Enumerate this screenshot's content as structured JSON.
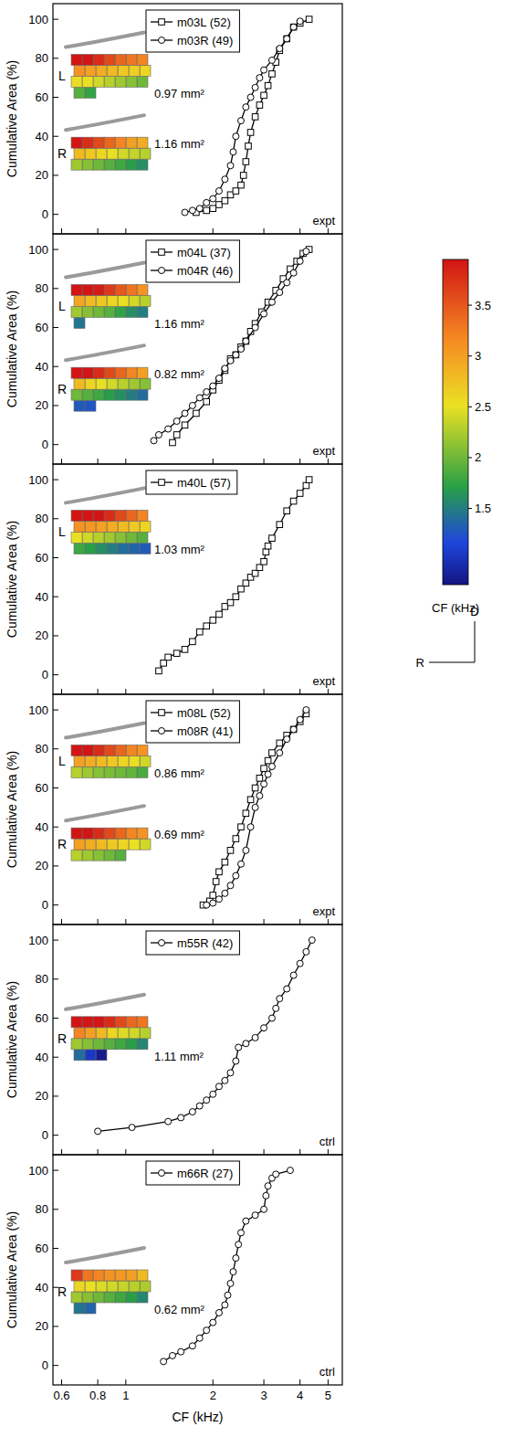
{
  "chart_data": [
    {
      "type": "line",
      "xlim": [
        0.56,
        5.6
      ],
      "xticks": [
        0.6,
        0.8,
        1,
        2,
        3,
        4,
        5
      ],
      "ylim": [
        -10,
        108
      ],
      "yticks": [
        0,
        20,
        40,
        60,
        80,
        100
      ],
      "log": "x",
      "ylabel": "Cumulative Area (%)",
      "annotation": "expt",
      "legend": "top",
      "tick_labels": "y",
      "series": [
        {
          "name": "m03L (52)",
          "marker": "square",
          "color": "#000000",
          "hemisphere": "L",
          "area_label": "0.97 mm²",
          "x": [
            1.75,
            1.9,
            2.0,
            2.1,
            2.2,
            2.3,
            2.4,
            2.5,
            2.55,
            2.6,
            2.65,
            2.7,
            2.8,
            2.9,
            3.0,
            3.1,
            3.2,
            3.3,
            3.4,
            3.6,
            3.8,
            4.0,
            4.3
          ],
          "values": [
            1,
            2,
            3,
            5,
            7,
            10,
            12,
            15,
            20,
            27,
            35,
            42,
            50,
            56,
            61,
            66,
            72,
            78,
            84,
            90,
            96,
            98,
            100
          ]
        },
        {
          "name": "m03R (49)",
          "marker": "circle",
          "color": "#000000",
          "hemisphere": "R",
          "area_label": "1.16 mm²",
          "x": [
            1.6,
            1.7,
            1.8,
            1.9,
            2.0,
            2.1,
            2.2,
            2.3,
            2.35,
            2.4,
            2.5,
            2.6,
            2.7,
            2.8,
            2.9,
            3.0,
            3.2,
            3.4,
            3.6,
            3.8,
            4.0
          ],
          "values": [
            1,
            2,
            3,
            6,
            8,
            12,
            18,
            25,
            32,
            40,
            48,
            55,
            60,
            65,
            70,
            74,
            79,
            85,
            90,
            96,
            99
          ]
        }
      ]
    },
    {
      "type": "line",
      "xlim": [
        0.56,
        5.6
      ],
      "xticks": [
        0.6,
        0.8,
        1,
        2,
        3,
        4,
        5
      ],
      "ylim": [
        -10,
        108
      ],
      "yticks": [
        0,
        20,
        40,
        60,
        80,
        100
      ],
      "log": "x",
      "ylabel": "Cumulative Area (%)",
      "annotation": "expt",
      "legend": "top",
      "tick_labels": "y",
      "series": [
        {
          "name": "m04L (37)",
          "marker": "square",
          "color": "#000000",
          "hemisphere": "L",
          "area_label": "1.16 mm²",
          "x": [
            1.45,
            1.5,
            1.6,
            1.75,
            1.9,
            2.0,
            2.1,
            2.2,
            2.3,
            2.4,
            2.5,
            2.6,
            2.7,
            2.8,
            2.95,
            3.1,
            3.3,
            3.5,
            3.7,
            3.9,
            4.1,
            4.3
          ],
          "values": [
            1,
            5,
            10,
            16,
            22,
            28,
            33,
            38,
            44,
            46,
            50,
            53,
            58,
            62,
            68,
            73,
            79,
            85,
            90,
            94,
            98,
            100
          ]
        },
        {
          "name": "m04R (46)",
          "marker": "circle",
          "color": "#000000",
          "hemisphere": "R",
          "area_label": "0.82 mm²",
          "x": [
            1.25,
            1.3,
            1.4,
            1.5,
            1.6,
            1.7,
            1.8,
            1.9,
            2.0,
            2.1,
            2.2,
            2.3,
            2.4,
            2.5,
            2.6,
            2.8,
            3.0,
            3.2,
            3.4,
            3.6,
            3.8,
            4.0,
            4.2
          ],
          "values": [
            2,
            5,
            8,
            12,
            16,
            20,
            24,
            27,
            30,
            34,
            39,
            43,
            46,
            49,
            53,
            60,
            67,
            73,
            78,
            83,
            88,
            94,
            99
          ]
        }
      ]
    },
    {
      "type": "line",
      "xlim": [
        0.56,
        5.6
      ],
      "xticks": [
        0.6,
        0.8,
        1,
        2,
        3,
        4,
        5
      ],
      "ylim": [
        -10,
        108
      ],
      "yticks": [
        0,
        20,
        40,
        60,
        80,
        100
      ],
      "log": "x",
      "ylabel": "Cumulative Area (%)",
      "annotation": "expt",
      "legend": "top",
      "tick_labels": "y",
      "series": [
        {
          "name": "m40L (57)",
          "marker": "square",
          "color": "#000000",
          "hemisphere": "L",
          "area_label": "1.03 mm²",
          "x": [
            1.3,
            1.35,
            1.4,
            1.5,
            1.6,
            1.7,
            1.8,
            1.9,
            2.0,
            2.1,
            2.2,
            2.3,
            2.4,
            2.5,
            2.6,
            2.7,
            2.8,
            2.9,
            3.0,
            3.05,
            3.1,
            3.2,
            3.4,
            3.6,
            3.8,
            4.0,
            4.2,
            4.3
          ],
          "values": [
            2,
            6,
            9,
            11,
            13,
            17,
            22,
            25,
            28,
            31,
            35,
            37,
            40,
            44,
            47,
            50,
            52,
            55,
            58,
            63,
            66,
            70,
            77,
            84,
            89,
            93,
            97,
            100
          ]
        }
      ]
    },
    {
      "type": "line",
      "xlim": [
        0.56,
        5.6
      ],
      "xticks": [
        0.6,
        0.8,
        1,
        2,
        3,
        4,
        5
      ],
      "ylim": [
        -10,
        108
      ],
      "yticks": [
        0,
        20,
        40,
        60,
        80,
        100
      ],
      "log": "x",
      "ylabel": "Cumulative Area (%)",
      "annotation": "expt",
      "legend": "top",
      "tick_labels": "y",
      "series": [
        {
          "name": "m08L (52)",
          "marker": "square",
          "color": "#000000",
          "hemisphere": "L",
          "area_label": "0.86 mm²",
          "x": [
            1.85,
            1.95,
            2.0,
            2.05,
            2.1,
            2.2,
            2.3,
            2.4,
            2.5,
            2.6,
            2.7,
            2.8,
            2.9,
            3.0,
            3.1,
            3.2,
            3.4,
            3.6,
            3.8,
            4.0,
            4.2
          ],
          "values": [
            0,
            2,
            5,
            12,
            17,
            22,
            28,
            34,
            40,
            47,
            54,
            60,
            65,
            70,
            74,
            78,
            83,
            87,
            90,
            94,
            98
          ]
        },
        {
          "name": "m08R (41)",
          "marker": "circle",
          "color": "#000000",
          "hemisphere": "R",
          "area_label": "0.69 mm²",
          "x": [
            1.9,
            2.0,
            2.1,
            2.2,
            2.3,
            2.4,
            2.5,
            2.6,
            2.7,
            2.8,
            2.9,
            3.0,
            3.1,
            3.2,
            3.4,
            3.6,
            3.8,
            4.0,
            4.2
          ],
          "values": [
            0,
            1,
            3,
            6,
            10,
            15,
            21,
            28,
            40,
            50,
            56,
            62,
            67,
            71,
            78,
            85,
            90,
            95,
            100
          ]
        }
      ]
    },
    {
      "type": "line",
      "xlim": [
        0.56,
        5.6
      ],
      "xticks": [
        0.6,
        0.8,
        1,
        2,
        3,
        4,
        5
      ],
      "ylim": [
        -10,
        108
      ],
      "yticks": [
        0,
        20,
        40,
        60,
        80,
        100
      ],
      "log": "x",
      "ylabel": "Cumulative Area (%)",
      "annotation": "ctrl",
      "legend": "top",
      "tick_labels": "y",
      "series": [
        {
          "name": "m55R (42)",
          "marker": "circle",
          "color": "#000000",
          "hemisphere": "R",
          "area_label": "1.11 mm²",
          "x": [
            0.8,
            1.05,
            1.4,
            1.55,
            1.7,
            1.8,
            1.9,
            2.0,
            2.1,
            2.2,
            2.3,
            2.4,
            2.45,
            2.6,
            2.8,
            3.0,
            3.2,
            3.3,
            3.4,
            3.6,
            3.8,
            4.0,
            4.2,
            4.4
          ],
          "values": [
            2,
            4,
            7,
            9,
            12,
            15,
            18,
            21,
            25,
            28,
            32,
            38,
            45,
            47,
            50,
            55,
            60,
            65,
            70,
            75,
            82,
            88,
            94,
            100
          ]
        }
      ]
    },
    {
      "type": "line",
      "xlim": [
        0.56,
        5.6
      ],
      "xticks": [
        0.6,
        0.8,
        1,
        2,
        3,
        4,
        5
      ],
      "ylim": [
        -10,
        108
      ],
      "yticks": [
        0,
        20,
        40,
        60,
        80,
        100
      ],
      "log": "x",
      "ylabel": "Cumulative Area (%)",
      "xlabel": "CF (kHz)",
      "annotation": "ctrl",
      "legend": "top",
      "series": [
        {
          "name": "m66R (27)",
          "marker": "circle",
          "color": "#000000",
          "hemisphere": "R",
          "area_label": "0.62 mm²",
          "x": [
            1.35,
            1.45,
            1.55,
            1.7,
            1.8,
            1.9,
            2.0,
            2.1,
            2.2,
            2.25,
            2.3,
            2.35,
            2.4,
            2.45,
            2.5,
            2.6,
            2.8,
            3.0,
            3.05,
            3.1,
            3.2,
            3.3,
            3.7
          ],
          "values": [
            2,
            5,
            7,
            10,
            14,
            18,
            22,
            27,
            31,
            36,
            42,
            48,
            55,
            62,
            68,
            74,
            77,
            80,
            87,
            92,
            96,
            98,
            100
          ]
        }
      ]
    }
  ],
  "colorbar": {
    "label": "CF (kHz)",
    "range": [
      0.75,
      3.95
    ],
    "ticks": [
      1.5,
      2,
      2.5,
      3,
      3.5
    ]
  },
  "compass": {
    "up": "D",
    "left": "R"
  }
}
